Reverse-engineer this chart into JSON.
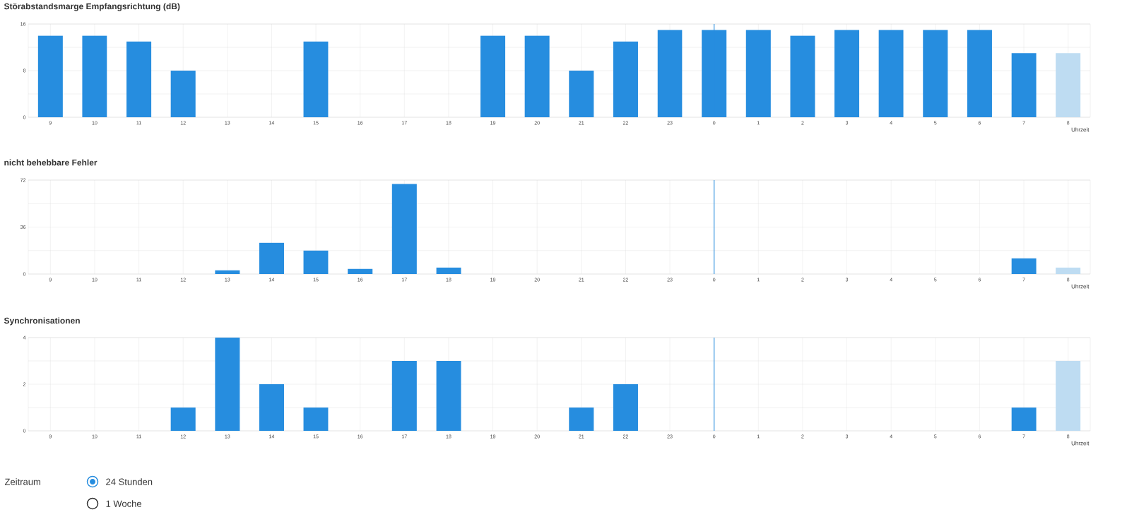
{
  "chart_data": [
    {
      "type": "bar",
      "title": "Störabstandsmarge Empfangsrichtung (dB)",
      "xlabel": "Uhrzeit",
      "categories": [
        "9",
        "10",
        "11",
        "12",
        "13",
        "14",
        "15",
        "16",
        "17",
        "18",
        "19",
        "20",
        "21",
        "22",
        "23",
        "0",
        "1",
        "2",
        "3",
        "4",
        "5",
        "6",
        "7",
        "8"
      ],
      "values": [
        14,
        14,
        13,
        8,
        0,
        0,
        13,
        0,
        0,
        0,
        14,
        14,
        8,
        13,
        15,
        15,
        15,
        14,
        15,
        15,
        15,
        15,
        11,
        11
      ],
      "colors": [
        "#268ddf",
        "#268ddf",
        "#268ddf",
        "#268ddf",
        "#268ddf",
        "#268ddf",
        "#268ddf",
        "#268ddf",
        "#268ddf",
        "#268ddf",
        "#268ddf",
        "#268ddf",
        "#268ddf",
        "#268ddf",
        "#268ddf",
        "#268ddf",
        "#268ddf",
        "#268ddf",
        "#268ddf",
        "#268ddf",
        "#268ddf",
        "#268ddf",
        "#268ddf",
        "#bedcf2"
      ],
      "ylim": [
        0,
        16
      ],
      "yticks": [
        0,
        {
          "value": 4,
          "label": null
        },
        8,
        {
          "value": 12,
          "label": null
        },
        16
      ],
      "grid": true,
      "ref_lines": [
        {
          "axis": "x",
          "value": "0",
          "color": "#268ddf"
        }
      ]
    },
    {
      "type": "bar",
      "title": "nicht behebbare Fehler",
      "xlabel": "Uhrzeit",
      "categories": [
        "9",
        "10",
        "11",
        "12",
        "13",
        "14",
        "15",
        "16",
        "17",
        "18",
        "19",
        "20",
        "21",
        "22",
        "23",
        "0",
        "1",
        "2",
        "3",
        "4",
        "5",
        "6",
        "7",
        "8"
      ],
      "values": [
        0,
        0,
        0,
        0,
        3,
        24,
        18,
        4,
        69,
        5,
        0,
        0,
        0,
        0,
        0,
        0,
        0,
        0,
        0,
        0,
        0,
        0,
        12,
        5
      ],
      "colors": [
        "#268ddf",
        "#268ddf",
        "#268ddf",
        "#268ddf",
        "#268ddf",
        "#268ddf",
        "#268ddf",
        "#268ddf",
        "#268ddf",
        "#268ddf",
        "#268ddf",
        "#268ddf",
        "#268ddf",
        "#268ddf",
        "#268ddf",
        "#268ddf",
        "#268ddf",
        "#268ddf",
        "#268ddf",
        "#268ddf",
        "#268ddf",
        "#268ddf",
        "#268ddf",
        "#bedcf2"
      ],
      "ylim": [
        0,
        72
      ],
      "yticks": [
        0,
        {
          "value": 18,
          "label": null
        },
        36,
        {
          "value": 54,
          "label": null
        },
        72
      ],
      "grid": true,
      "ref_lines": [
        {
          "axis": "x",
          "value": "0",
          "color": "#268ddf"
        }
      ]
    },
    {
      "type": "bar",
      "title": "Synchronisationen",
      "xlabel": "Uhrzeit",
      "categories": [
        "9",
        "10",
        "11",
        "12",
        "13",
        "14",
        "15",
        "16",
        "17",
        "18",
        "19",
        "20",
        "21",
        "22",
        "23",
        "0",
        "1",
        "2",
        "3",
        "4",
        "5",
        "6",
        "7",
        "8"
      ],
      "values": [
        0,
        0,
        0,
        1,
        4,
        2,
        1,
        0,
        3,
        3,
        0,
        0,
        1,
        2,
        0,
        0,
        0,
        0,
        0,
        0,
        0,
        0,
        1,
        3
      ],
      "colors": [
        "#268ddf",
        "#268ddf",
        "#268ddf",
        "#268ddf",
        "#268ddf",
        "#268ddf",
        "#268ddf",
        "#268ddf",
        "#268ddf",
        "#268ddf",
        "#268ddf",
        "#268ddf",
        "#268ddf",
        "#268ddf",
        "#268ddf",
        "#268ddf",
        "#268ddf",
        "#268ddf",
        "#268ddf",
        "#268ddf",
        "#268ddf",
        "#268ddf",
        "#268ddf",
        "#bedcf2"
      ],
      "ylim": [
        0,
        4
      ],
      "yticks": [
        0,
        {
          "value": 1,
          "label": null
        },
        2,
        {
          "value": 3,
          "label": null
        },
        4
      ],
      "grid": true,
      "ref_lines": [
        {
          "axis": "x",
          "value": "0",
          "color": "#268ddf"
        }
      ],
      "annotations": [
        "Zeitraum",
        "24 Stunden",
        "1 Woche"
      ]
    }
  ]
}
